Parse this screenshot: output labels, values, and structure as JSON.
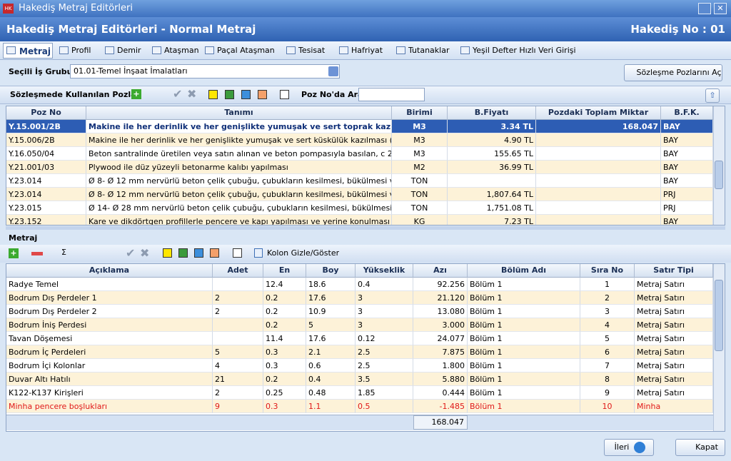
{
  "window": {
    "title": "Hakediş Metraj Editörleri"
  },
  "header": {
    "title": "Hakediş Metraj Editörleri - Normal Metraj",
    "hakedis_no": "Hakediş No : 01"
  },
  "tabs": [
    "Metraj",
    "Profil",
    "Demir",
    "Ataşman",
    "Paçal Ataşman",
    "Tesisat",
    "Hafriyat",
    "Tutanaklar",
    "Yeşil Defter Hızlı Veri Girişi"
  ],
  "selection": {
    "label": "Seçili İş Grubu",
    "value": "01.01-Temel İnşaat İmalatları",
    "open_button": "Sözleşme Pozlarını Aç"
  },
  "poz_toolbar": {
    "title": "Sözleşmede Kullanılan Pozlar",
    "search_label": "Poz No'da Ara"
  },
  "poz_table": {
    "columns": [
      "Poz No",
      "Tanımı",
      "Birimi",
      "B.Fiyatı",
      "Pozdaki Toplam Miktar",
      "B.F.K."
    ],
    "rows": [
      [
        "Y.15.001/2B",
        "Makine ile her derinlik ve her genişlikte yumuşak ve sert toprak kazılması (derin",
        "M3",
        "3.34 TL",
        "168.047",
        "BAY"
      ],
      [
        "Y.15.006/2B",
        "Makine ile her derinlik ve her genişlikte yumuşak ve sert küskülük kazılması (derin kaz",
        "M3",
        "4.90 TL",
        null,
        "BAY"
      ],
      [
        "Y.16.050/04",
        "Beton santralinde üretilen veya satın alınan ve beton pompasıyla basılan, c 20/25 bası",
        "M3",
        "155.65 TL",
        null,
        "BAY"
      ],
      [
        "Y.21.001/03",
        "Plywood ile düz yüzeyli betonarme kalıbı yapılması",
        "M2",
        "36.99 TL",
        null,
        "BAY"
      ],
      [
        "Y.23.014",
        "Ø 8- Ø 12 mm nervürlü beton çelik çubuğu, çubukların kesilmesi, bükülmesi ve yerin",
        "TON",
        null,
        null,
        "BAY"
      ],
      [
        "Y.23.014",
        "Ø 8- Ø 12 mm nervürlü beton çelik çubuğu, çubukların kesilmesi, bükülmesi ve yerin",
        "TON",
        "1,807.64 TL",
        null,
        "PRJ"
      ],
      [
        "Y.23.015",
        "Ø 14- Ø 28 mm nervürlü beton çelik çubuğu, çubukların kesilmesi, bükülmesi ve yeri",
        "TON",
        "1,751.08 TL",
        null,
        "PRJ"
      ],
      [
        "Y.23.152",
        "Kare ve dikdörtgen profillerle pencere ve kapı yapılması ve yerine konulması",
        "KG",
        "7.23 TL",
        null,
        "BAY"
      ]
    ]
  },
  "metraj": {
    "title": "Metraj",
    "toggle_button": "Kolon Gizle/Göster"
  },
  "metraj_table": {
    "columns": [
      "Açıklama",
      "Adet",
      "En",
      "Boy",
      "Yükseklik",
      "Azı",
      "Bölüm Adı",
      "Sıra No",
      "Satır Tipi"
    ],
    "rows": [
      [
        "Radye Temel",
        null,
        "12.4",
        "18.6",
        "0.4",
        "92.256",
        "Bölüm 1",
        "1",
        "Metraj Satırı"
      ],
      [
        "Bodrum Dış Perdeler 1",
        "2",
        "0.2",
        "17.6",
        "3",
        "21.120",
        "Bölüm 1",
        "2",
        "Metraj Satırı"
      ],
      [
        "Bodrum Dış Perdeler 2",
        "2",
        "0.2",
        "10.9",
        "3",
        "13.080",
        "Bölüm 1",
        "3",
        "Metraj Satırı"
      ],
      [
        "Bodrum İniş Perdesi",
        null,
        "0.2",
        "5",
        "3",
        "3.000",
        "Bölüm 1",
        "4",
        "Metraj Satırı"
      ],
      [
        "Tavan Döşemesi",
        null,
        "11.4",
        "17.6",
        "0.12",
        "24.077",
        "Bölüm 1",
        "5",
        "Metraj Satırı"
      ],
      [
        "Bodrum İç Perdeleri",
        "5",
        "0.3",
        "2.1",
        "2.5",
        "7.875",
        "Bölüm 1",
        "6",
        "Metraj Satırı"
      ],
      [
        "Bodrum İçi Kolonlar",
        "4",
        "0.3",
        "0.6",
        "2.5",
        "1.800",
        "Bölüm 1",
        "7",
        "Metraj Satırı"
      ],
      [
        "Duvar Altı Hatılı",
        "21",
        "0.2",
        "0.4",
        "3.5",
        "5.880",
        "Bölüm 1",
        "8",
        "Metraj Satırı"
      ],
      [
        "K122-K137 Kirişleri",
        "2",
        "0.25",
        "0.48",
        "1.85",
        "0.444",
        "Bölüm 1",
        "9",
        "Metraj Satırı"
      ],
      [
        "Minha pencere boşlukları",
        "9",
        "0.3",
        "1.1",
        "0.5",
        "-1.485",
        "Bölüm 1",
        "10",
        "Minha"
      ]
    ],
    "total": "168.047"
  },
  "footer": {
    "next": "İleri",
    "close": "Kapat"
  }
}
